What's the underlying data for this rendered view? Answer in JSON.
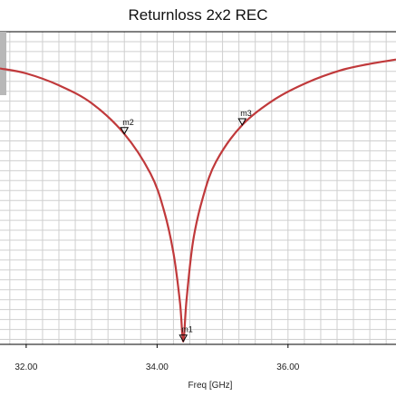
{
  "chart_data": {
    "type": "line",
    "title": "Returnloss 2x2 REC",
    "xlabel": "Freq [GHz]",
    "ylabel": "",
    "xlim": [
      31.6,
      37.65
    ],
    "x_ticks": [
      "32.00",
      "34.00",
      "36.00"
    ],
    "grid": true,
    "series": [
      {
        "name": "",
        "color": "#c0393b",
        "x": [
          31.6,
          32.0,
          32.5,
          33.0,
          33.5,
          33.9,
          34.1,
          34.25,
          34.35,
          34.4,
          34.45,
          34.55,
          34.7,
          34.9,
          35.3,
          35.8,
          36.3,
          36.8,
          37.2,
          37.65
        ],
        "y": [
          -5.7,
          -6.2,
          -7.4,
          -9.2,
          -12.3,
          -16.3,
          -19.9,
          -24.3,
          -29.3,
          -33.2,
          -29.0,
          -23.1,
          -18.7,
          -15.1,
          -11.4,
          -8.8,
          -7.1,
          -5.9,
          -5.3,
          -4.8
        ]
      }
    ],
    "ylim": [
      -33.5,
      -2.0
    ],
    "markers": [
      {
        "label": "m1",
        "x": 34.4,
        "y": -33.2
      },
      {
        "label": "m2",
        "x": 33.5,
        "y": -12.3
      },
      {
        "label": "m3",
        "x": 35.3,
        "y": -11.4
      }
    ]
  }
}
